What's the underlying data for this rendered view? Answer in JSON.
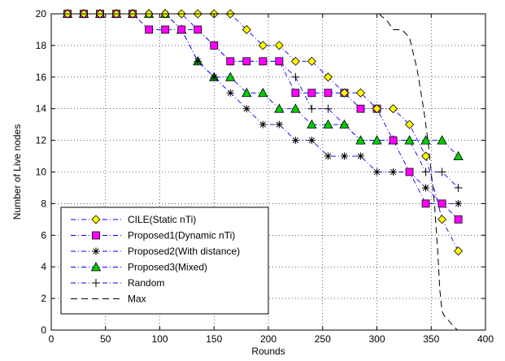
{
  "chart_data": {
    "type": "line",
    "title": "",
    "xlabel": "Rounds",
    "ylabel": "Number of Live nodes",
    "xlim": [
      0,
      400
    ],
    "ylim": [
      0,
      20
    ],
    "x_ticks": [
      "0",
      "50",
      "100",
      "150",
      "200",
      "250",
      "300",
      "350",
      "400"
    ],
    "y_ticks": [
      "0",
      "2",
      "4",
      "6",
      "8",
      "10",
      "12",
      "14",
      "16",
      "18",
      "20"
    ],
    "grid": "dotted",
    "legend_position": "bottom-left",
    "series": [
      {
        "name": "CILE(Static nTi)",
        "marker": "diamond",
        "line_color": "#0000ff",
        "line_style": "dashdot",
        "marker_fill": "#ffff00",
        "x": [
          15,
          30,
          45,
          60,
          75,
          90,
          105,
          120,
          135,
          150,
          165,
          180,
          195,
          210,
          225,
          240,
          255,
          270,
          285,
          300,
          315,
          330,
          345,
          360,
          375
        ],
        "y": [
          20,
          20,
          20,
          20,
          20,
          20,
          20,
          20,
          20,
          20,
          20,
          19,
          18,
          18,
          17,
          17,
          16,
          15,
          15,
          14,
          14,
          13,
          11,
          7,
          5
        ]
      },
      {
        "name": "Proposed1(Dynamic nTi)",
        "marker": "square",
        "line_color": "#0000ff",
        "line_style": "dashdot",
        "marker_fill": "#ff00ff",
        "x": [
          15,
          30,
          45,
          60,
          75,
          90,
          105,
          120,
          135,
          150,
          165,
          180,
          195,
          210,
          225,
          240,
          255,
          270,
          285,
          300,
          315,
          330,
          345,
          360,
          375
        ],
        "y": [
          20,
          20,
          20,
          20,
          20,
          19,
          19,
          19,
          19,
          18,
          17,
          17,
          17,
          17,
          15,
          15,
          15,
          15,
          14,
          14,
          12,
          10,
          8,
          8,
          7
        ]
      },
      {
        "name": "Proposed2(With distance)",
        "marker": "star",
        "line_color": "#0000ff",
        "line_style": "dashdot",
        "marker_fill": "#000000",
        "x": [
          15,
          30,
          45,
          60,
          75,
          90,
          105,
          120,
          135,
          150,
          165,
          180,
          195,
          210,
          225,
          240,
          255,
          270,
          285,
          300,
          315,
          330,
          345,
          360,
          375
        ],
        "y": [
          20,
          20,
          20,
          20,
          20,
          20,
          20,
          19,
          17,
          16,
          15,
          14,
          13,
          13,
          12,
          12,
          11,
          11,
          11,
          10,
          10,
          10,
          9,
          8,
          8
        ]
      },
      {
        "name": "Proposed3(Mixed)",
        "marker": "triangle",
        "line_color": "#0000ff",
        "line_style": "dashdot",
        "marker_fill": "#00cc00",
        "x": [
          15,
          30,
          45,
          60,
          75,
          90,
          105,
          120,
          135,
          150,
          165,
          180,
          195,
          210,
          225,
          240,
          255,
          270,
          285,
          300,
          315,
          330,
          345,
          360,
          375
        ],
        "y": [
          20,
          20,
          20,
          20,
          20,
          20,
          20,
          19,
          17,
          16,
          16,
          15,
          15,
          14,
          14,
          13,
          13,
          13,
          12,
          12,
          12,
          12,
          12,
          12,
          11
        ]
      },
      {
        "name": "Random",
        "marker": "plus",
        "line_color": "#0000ff",
        "line_style": "dashdot",
        "marker_fill": "#000000",
        "x": [
          15,
          30,
          45,
          60,
          75,
          90,
          105,
          120,
          135,
          150,
          165,
          180,
          195,
          210,
          225,
          240,
          255,
          270,
          285,
          300,
          315,
          330,
          345,
          360,
          375
        ],
        "y": [
          20,
          20,
          20,
          20,
          20,
          20,
          20,
          20,
          19,
          18,
          17,
          17,
          17,
          17,
          16,
          14,
          14,
          13,
          12,
          12,
          12,
          12,
          10,
          10,
          9
        ]
      },
      {
        "name": "Max",
        "marker": "none",
        "line_color": "#000000",
        "line_style": "dashed",
        "marker_fill": "none",
        "x": [
          302,
          310,
          315,
          323,
          330,
          337,
          343,
          347,
          350,
          353,
          356,
          358,
          360,
          362,
          366,
          370,
          374
        ],
        "y": [
          20,
          19.5,
          19,
          19,
          18.5,
          16.5,
          14,
          12,
          10,
          8,
          5,
          2.5,
          1.2,
          0.9,
          0.6,
          0.3,
          0
        ]
      }
    ]
  }
}
